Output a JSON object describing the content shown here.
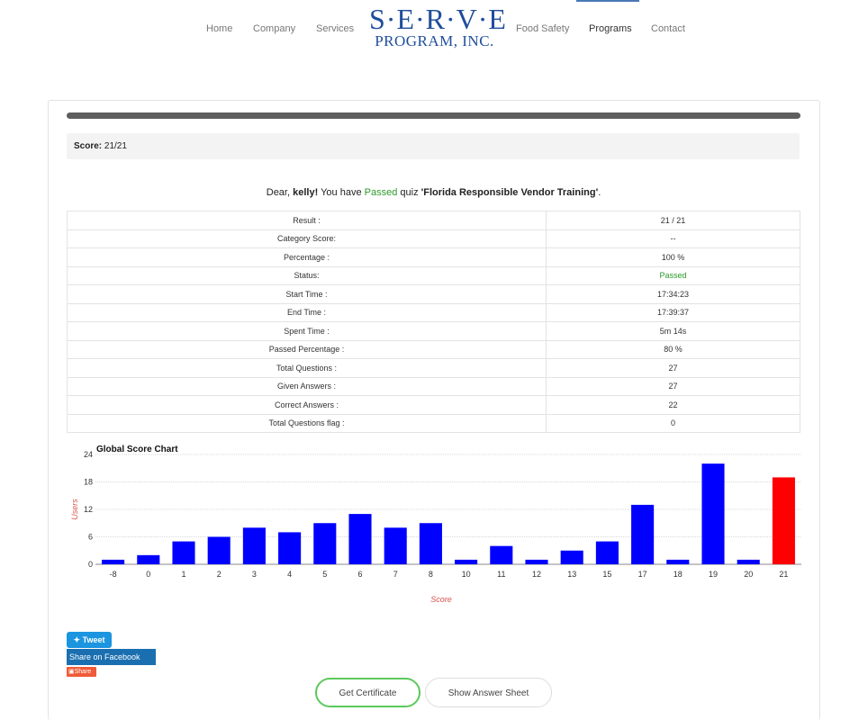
{
  "nav": {
    "links": [
      "Home",
      "Company",
      "Services",
      "Food Safety",
      "Programs",
      "Contact"
    ],
    "logo_top": "S·E·R·V·E",
    "logo_bottom": "PROGRAM, INC."
  },
  "score": {
    "label": "Score:",
    "value": "21/21"
  },
  "message": {
    "prefix": "Dear, ",
    "name": "kelly!",
    "middle": " You have ",
    "status": "Passed",
    "quiz_word": " quiz ",
    "quiz": "'Florida Responsible Vendor Training'",
    "suffix": "."
  },
  "results": [
    {
      "label": "Result :",
      "value": "21 / 21"
    },
    {
      "label": "Category Score:",
      "value": "--"
    },
    {
      "label": "Percentage :",
      "value": "100 %"
    },
    {
      "label": "Status:",
      "value": "Passed"
    },
    {
      "label": "Start Time :",
      "value": "17:34:23"
    },
    {
      "label": "End Time :",
      "value": "17:39:37"
    },
    {
      "label": "Spent Time :",
      "value": "5m 14s"
    },
    {
      "label": "Passed Percentage :",
      "value": "80 %"
    },
    {
      "label": "Total Questions :",
      "value": "27"
    },
    {
      "label": "Given Answers :",
      "value": "27"
    },
    {
      "label": "Correct Answers :",
      "value": "22"
    },
    {
      "label": "Total Questions flag :",
      "value": "0"
    }
  ],
  "chart_data": {
    "type": "bar",
    "title": "Global Score Chart",
    "xlabel": "Score",
    "ylabel": "Users",
    "categories": [
      "-8",
      "0",
      "1",
      "2",
      "3",
      "4",
      "5",
      "6",
      "7",
      "8",
      "10",
      "11",
      "12",
      "13",
      "15",
      "17",
      "18",
      "19",
      "20",
      "21"
    ],
    "values": [
      1,
      2,
      5,
      6,
      8,
      7,
      9,
      11,
      8,
      9,
      1,
      4,
      1,
      3,
      5,
      13,
      1,
      22,
      1,
      19
    ],
    "highlight_category": "21",
    "colors": {
      "bar": "#0000ff",
      "highlight": "#ff0000",
      "axis_label": "#d9534f"
    },
    "yticks": [
      0,
      6,
      12,
      18,
      24
    ],
    "ylim": [
      0,
      24
    ],
    "grid": true
  },
  "social": {
    "tweet": "Tweet",
    "facebook": "Share on Facebook",
    "share": "Share"
  },
  "buttons": {
    "certificate": "Get Certificate",
    "answer_sheet": "Show Answer Sheet"
  }
}
